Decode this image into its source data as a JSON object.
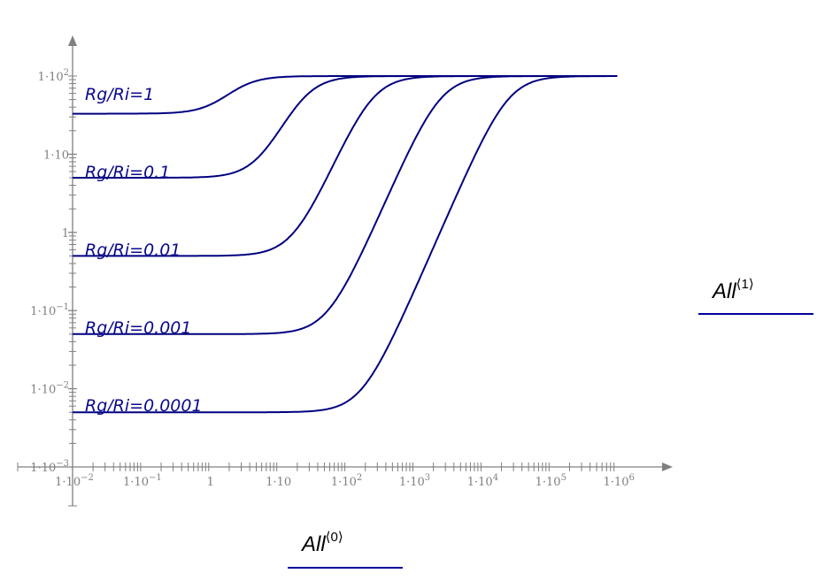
{
  "chart_data": {
    "type": "line",
    "title": "",
    "xscale": "log",
    "yscale": "log",
    "xlabel": "All⟨0⟩",
    "ylabel": "All⟨1⟩",
    "xlim": [
      0.01,
      1000000
    ],
    "ylim": [
      0.001,
      100
    ],
    "grid": false,
    "x_tick_labels": [
      "1·10⁻²",
      "1·10⁻¹",
      "1",
      "1·10",
      "1·10²",
      "1·10³",
      "1·10⁴",
      "1·10⁵",
      "1·10⁶"
    ],
    "y_tick_labels": [
      "1·10²",
      "1·10",
      "1",
      "1·10⁻¹",
      "1·10⁻²",
      "1·10⁻³"
    ],
    "line_color": "#000080",
    "series": [
      {
        "name": "Rg/Ri=1",
        "baseline": 33,
        "plateau": 100,
        "transition_x": 2.5
      },
      {
        "name": "Rg/Ri=0.1",
        "baseline": 5,
        "plateau": 100,
        "transition_x": 25
      },
      {
        "name": "Rg/Ri=0.01",
        "baseline": 0.5,
        "plateau": 100,
        "transition_x": 250
      },
      {
        "name": "Rg/Ri=0.001",
        "baseline": 0.05,
        "plateau": 100,
        "transition_x": 2500
      },
      {
        "name": "Rg/Ri=0.0001",
        "baseline": 0.005,
        "plateau": 100,
        "transition_x": 25000
      }
    ]
  },
  "labels": {
    "curve_labels": [
      "Rg/Ri=1",
      "Rg/Ri=0.1",
      "Rg/Ri=0.01",
      "Rg/Ri=0.001",
      "Rg/Ri=0.0001"
    ],
    "y_axis_legend": {
      "base": "All",
      "sup": "⟨1⟩"
    },
    "x_axis_legend": {
      "base": "All",
      "sup": "⟨0⟩"
    }
  }
}
